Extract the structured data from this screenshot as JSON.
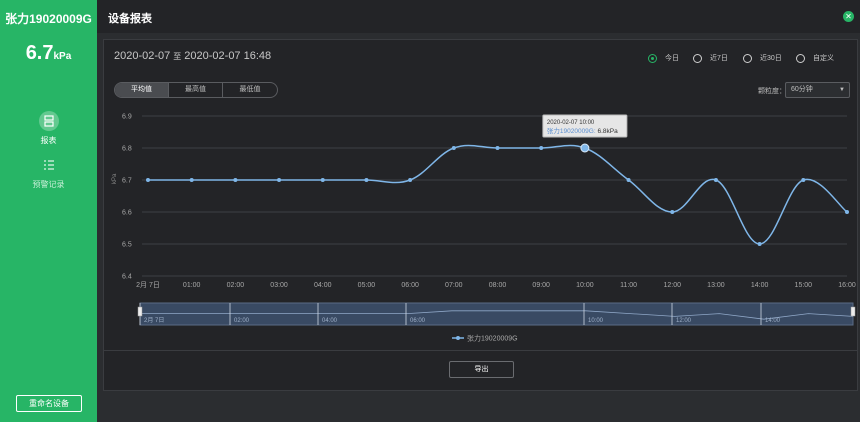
{
  "sidebar": {
    "device_name": "张力19020009G",
    "current_value": "6.7",
    "current_unit": "kPa",
    "nav": [
      {
        "label": "报表",
        "icon": "report-icon",
        "active": true
      },
      {
        "label": "预警记录",
        "icon": "list-icon",
        "active": false
      }
    ],
    "rename_label": "重命名设备"
  },
  "header": {
    "title": "设备报表"
  },
  "panel": {
    "start_date": "2020-02-07",
    "to_label": "至",
    "end_date": "2020-02-07 16:48",
    "ranges": [
      {
        "label": "今日",
        "selected": true
      },
      {
        "label": "近7日",
        "selected": false
      },
      {
        "label": "近30日",
        "selected": false
      },
      {
        "label": "自定义",
        "selected": false
      }
    ],
    "segments": [
      "平均值",
      "最高值",
      "最低值"
    ],
    "granularity_label": "颗粒度：",
    "granularity_value": "60分钟",
    "export_label": "导出"
  },
  "chart_data": {
    "type": "line",
    "ylabel": "kPa",
    "ylim": [
      6.4,
      6.9
    ],
    "yticks": [
      "6.4",
      "6.5",
      "6.6",
      "6.7",
      "6.8",
      "6.9"
    ],
    "categories": [
      "2月 7日",
      "01:00",
      "02:00",
      "03:00",
      "04:00",
      "05:00",
      "06:00",
      "07:00",
      "08:00",
      "09:00",
      "10:00",
      "11:00",
      "12:00",
      "13:00",
      "14:00",
      "15:00",
      "16:00"
    ],
    "series": [
      {
        "name": "张力19020009G",
        "values": [
          6.7,
          6.7,
          6.7,
          6.7,
          6.7,
          6.7,
          6.7,
          6.8,
          6.8,
          6.8,
          6.8,
          6.7,
          6.6,
          6.7,
          6.5,
          6.7,
          6.6
        ],
        "color": "#7fb6e8"
      }
    ],
    "tooltip": {
      "time": "2020-02-07 10:00",
      "series": "张力19020009G",
      "value": "6.8kPa"
    },
    "navigator_labels": [
      "2月 7日",
      "02:00",
      "04:00",
      "06:00",
      "10:00",
      "12:00",
      "14:00"
    ]
  }
}
